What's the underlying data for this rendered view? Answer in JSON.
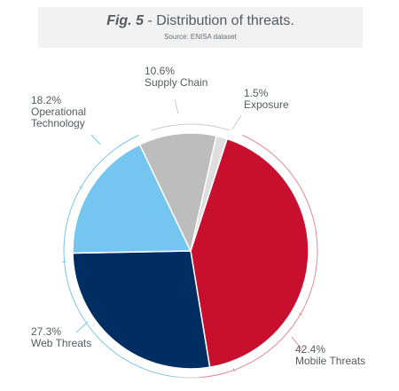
{
  "header": {
    "fig_label": "Fig. 5",
    "title_sep": " - ",
    "title": "Distribution of threats.",
    "source": "Source: ENISA dataset"
  },
  "colors": {
    "mobile": "#c8102e",
    "web": "#002d62",
    "operational": "#74c6f0",
    "supply": "#bdbdbd",
    "exposure": "#dedede",
    "ring_blue": "#7fc4ea",
    "ring_red": "#e08a98",
    "ring_gray": "#cccccc",
    "leader": "#9aa0a6"
  },
  "chart_data": {
    "type": "pie",
    "title": "Distribution of threats.",
    "slices": [
      {
        "label": "Mobile Threats",
        "value": 42.4,
        "pct_text": "42.4%",
        "color_key": "mobile"
      },
      {
        "label": "Web Threats",
        "value": 27.3,
        "pct_text": "27.3%",
        "color_key": "web"
      },
      {
        "label": "Operational Technology",
        "label_lines": [
          "Operational",
          "Technology"
        ],
        "value": 18.2,
        "pct_text": "18.2%",
        "color_key": "operational"
      },
      {
        "label": "Supply Chain",
        "value": 10.6,
        "pct_text": "10.6%",
        "color_key": "supply"
      },
      {
        "label": "Exposure",
        "value": 1.5,
        "pct_text": "1.5%",
        "color_key": "exposure"
      }
    ]
  }
}
